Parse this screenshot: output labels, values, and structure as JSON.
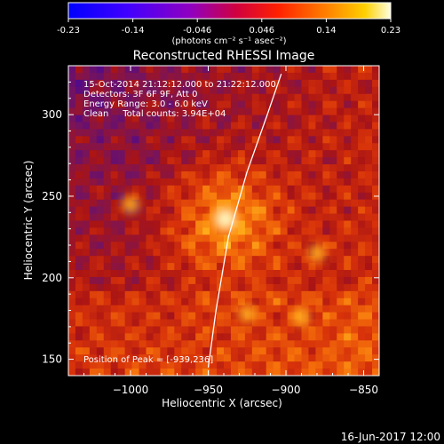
{
  "colorbar": {
    "tick_labels": [
      "-0.23",
      "-0.14",
      "-0.046",
      "0.046",
      "0.14",
      "0.23"
    ],
    "unit_label": "(photons cm⁻² s⁻¹ asec⁻²)"
  },
  "plot": {
    "title": "Reconstructed RHESSI Image",
    "info_lines": [
      "15-Oct-2014 21:12:12.000 to 21:22:12.000",
      "Detectors: 3F 6F 9F, Att 0",
      "Energy Range: 3.0 - 6.0 keV",
      "Clean     Total counts: 3.94E+04"
    ],
    "peak_label": "Position of Peak = [-939,236]",
    "footer_date": "16-Jun-2017 12:00"
  },
  "chart_data": {
    "type": "heatmap",
    "title": "Reconstructed RHESSI Image",
    "xlabel": "Heliocentric X (arcsec)",
    "ylabel": "Heliocentric Y (arcsec)",
    "xlim": [
      -1040,
      -840
    ],
    "ylim": [
      140,
      330
    ],
    "x_ticks": [
      -1000,
      -950,
      -900,
      -850
    ],
    "y_ticks": [
      150,
      200,
      250,
      300
    ],
    "x_tick_labels": [
      "−1000",
      "−950",
      "−900",
      "−850"
    ],
    "y_tick_labels": [
      "150",
      "200",
      "250",
      "300"
    ],
    "color_range": [
      -0.23,
      0.23
    ],
    "peak": {
      "x": -939,
      "y": 236
    },
    "secondary_sources": [
      {
        "x": -925,
        "y": 178
      },
      {
        "x": -890,
        "y": 176
      },
      {
        "x": -1000,
        "y": 245
      },
      {
        "x": -880,
        "y": 215
      }
    ],
    "limb_curve": [
      {
        "x": -950,
        "y": 145
      },
      {
        "x": -945,
        "y": 180
      },
      {
        "x": -937,
        "y": 225
      },
      {
        "x": -925,
        "y": 265
      },
      {
        "x": -912,
        "y": 300
      },
      {
        "x": -903,
        "y": 325
      }
    ]
  }
}
